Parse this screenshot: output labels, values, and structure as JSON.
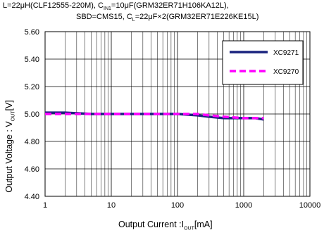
{
  "title_line1": "L=22μH(CLF12555-220M),   Cₑₙ=10μF(GRM32ER71H106KA12L),",
  "title_line1_parts": [
    "L=22μH(CLF12555-220M),   C",
    "IN1",
    "=10μF(GRM32ER71H106KA12L),"
  ],
  "title_line2_parts": [
    "SBD=CMS15, C",
    "L",
    "=22μF×2(GRM32ER71E226KE15L)"
  ],
  "ylabel_parts": [
    "Output Voltage : V",
    "OUT",
    "[V]"
  ],
  "xlabel_parts": [
    "Output Current :I",
    "OUT",
    "[mA]"
  ],
  "chart_data": {
    "type": "line",
    "x_scale": "log",
    "xlim": [
      1,
      10000
    ],
    "ylim": [
      4.4,
      5.6
    ],
    "x_ticks": [
      "1",
      "10",
      "100",
      "1000",
      "10000"
    ],
    "y_ticks": [
      "4.40",
      "4.60",
      "4.80",
      "5.00",
      "5.20",
      "5.40",
      "5.60"
    ],
    "grid": true,
    "legend_position": "top-right",
    "series": [
      {
        "name": "XC9271",
        "color": "#1a237e",
        "style": "solid",
        "x": [
          1,
          2,
          5,
          10,
          20,
          50,
          100,
          200,
          300,
          500,
          1000,
          1500,
          2000
        ],
        "y": [
          5.01,
          5.01,
          5.0,
          5.0,
          5.0,
          5.0,
          5.0,
          4.99,
          4.98,
          4.97,
          4.97,
          4.97,
          4.96
        ]
      },
      {
        "name": "XC9270",
        "color": "#ff00ff",
        "style": "dashed",
        "x": [
          1,
          2,
          5,
          10,
          20,
          50,
          100,
          200,
          300,
          500,
          1000,
          1500,
          2000
        ],
        "y": [
          5.0,
          5.0,
          5.0,
          5.0,
          5.0,
          5.0,
          5.0,
          5.0,
          4.99,
          4.98,
          4.97,
          4.97,
          4.97
        ]
      }
    ]
  }
}
